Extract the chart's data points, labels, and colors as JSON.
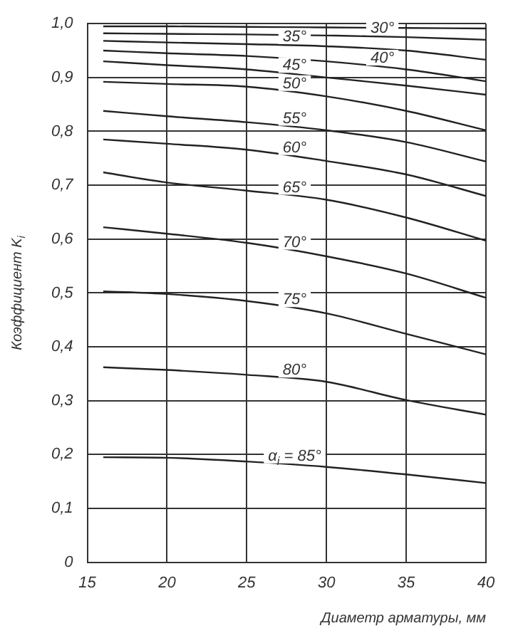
{
  "chart_data": {
    "type": "line",
    "xlabel": "Диаметр арматуры, мм",
    "ylabel": "Коэффициент K$_{i}$",
    "x": [
      16,
      20,
      25,
      30,
      35,
      40
    ],
    "series": [
      {
        "color": "#222222",
        "values": [
          0.995,
          0.995,
          0.994,
          0.993,
          0.992,
          0.991
        ]
      },
      {
        "name": "30°",
        "color": "#222222",
        "values": [
          0.982,
          0.981,
          0.98,
          0.978,
          0.975,
          0.97
        ]
      },
      {
        "name": "35°",
        "color": "#222222",
        "values": [
          0.968,
          0.965,
          0.962,
          0.958,
          0.95,
          0.933
        ]
      },
      {
        "name": "40°",
        "color": "#222222",
        "values": [
          0.95,
          0.945,
          0.94,
          0.93,
          0.915,
          0.893
        ]
      },
      {
        "name": "45°",
        "color": "#222222",
        "values": [
          0.93,
          0.923,
          0.915,
          0.9,
          0.885,
          0.868
        ]
      },
      {
        "name": "50°",
        "color": "#222222",
        "values": [
          0.892,
          0.888,
          0.883,
          0.865,
          0.838,
          0.802
        ]
      },
      {
        "name": "55°",
        "color": "#222222",
        "values": [
          0.838,
          0.828,
          0.817,
          0.802,
          0.78,
          0.744
        ]
      },
      {
        "name": "60°",
        "color": "#222222",
        "values": [
          0.785,
          0.777,
          0.766,
          0.745,
          0.72,
          0.68
        ]
      },
      {
        "name": "65°",
        "color": "#222222",
        "values": [
          0.724,
          0.705,
          0.69,
          0.673,
          0.64,
          0.597
        ]
      },
      {
        "name": "70°",
        "color": "#222222",
        "values": [
          0.622,
          0.61,
          0.593,
          0.568,
          0.536,
          0.491
        ]
      },
      {
        "name": "75°",
        "color": "#222222",
        "values": [
          0.503,
          0.498,
          0.485,
          0.462,
          0.424,
          0.386
        ]
      },
      {
        "name": "80°",
        "color": "#222222",
        "values": [
          0.362,
          0.357,
          0.348,
          0.335,
          0.301,
          0.274
        ]
      },
      {
        "name": "α$_{i}$ = 85°",
        "color": "#222222",
        "values": [
          0.195,
          0.194,
          0.187,
          0.177,
          0.163,
          0.147
        ]
      }
    ],
    "xlim": [
      15,
      40
    ],
    "xticks": [
      15,
      20,
      25,
      30,
      35,
      40
    ],
    "ylim": [
      0,
      1
    ],
    "yticks": [
      0,
      {
        "value": 0.1,
        "label": "0,1"
      },
      {
        "value": 0.2,
        "label": "0,2"
      },
      {
        "value": 0.3,
        "label": "0,3"
      },
      {
        "value": 0.4,
        "label": "0,4"
      },
      {
        "value": 0.5,
        "label": "0,5"
      },
      {
        "value": 0.6,
        "label": "0,6"
      },
      {
        "value": 0.7,
        "label": "0,7"
      },
      {
        "value": 0.8,
        "label": "0,8"
      },
      {
        "value": 0.9,
        "label": "0,9"
      },
      {
        "value": 1,
        "label": "1,0"
      }
    ],
    "grid": true,
    "legend": false,
    "marker": "none",
    "line_style": "solid"
  }
}
